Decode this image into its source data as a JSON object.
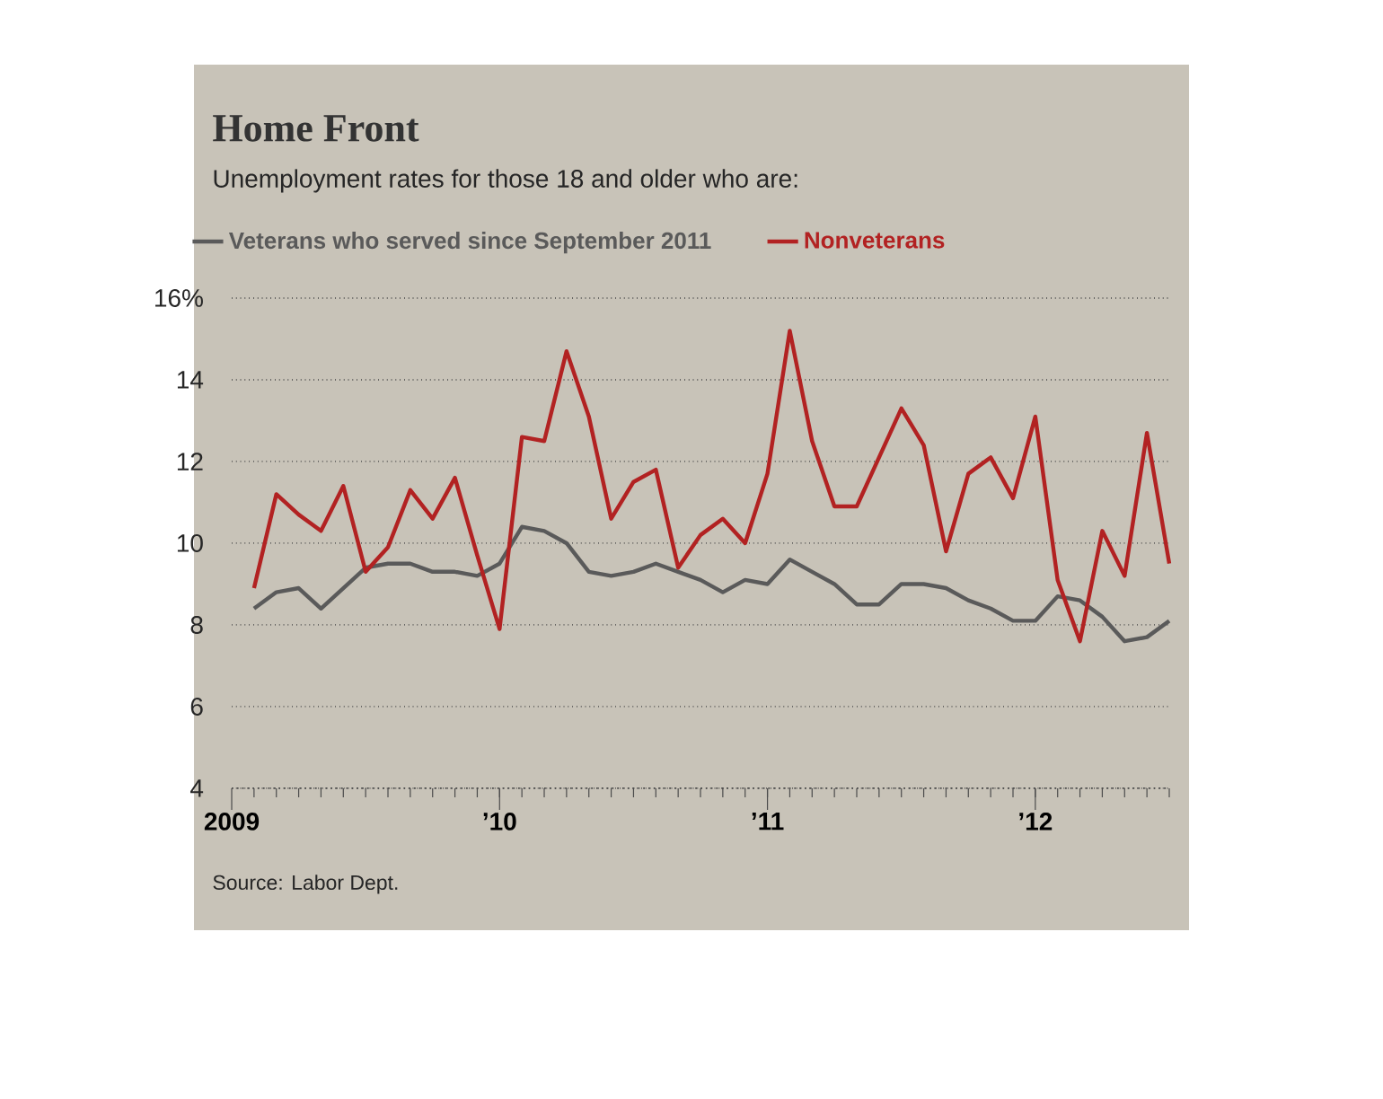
{
  "chart_data": {
    "type": "line",
    "title": "Home Front",
    "subtitle": "Unemployment rates for those 18 and older who are:",
    "annotations": [
      "Source: Labor Dept."
    ],
    "x": [
      "2009-02",
      "2009-03",
      "2009-04",
      "2009-05",
      "2009-06",
      "2009-07",
      "2009-08",
      "2009-09",
      "2009-10",
      "2009-11",
      "2009-12",
      "2010-01",
      "2010-02",
      "2010-03",
      "2010-04",
      "2010-05",
      "2010-06",
      "2010-07",
      "2010-08",
      "2010-09",
      "2010-10",
      "2010-11",
      "2010-12",
      "2011-01",
      "2011-02",
      "2011-03",
      "2011-04",
      "2011-05",
      "2011-06",
      "2011-07",
      "2011-08",
      "2011-09",
      "2011-10",
      "2011-11",
      "2011-12",
      "2012-01",
      "2012-02",
      "2012-03",
      "2012-04",
      "2012-05",
      "2012-06",
      "2012-07"
    ],
    "series": [
      {
        "name": "Veterans who served since September 2011",
        "color": "#5a5a5a",
        "values": [
          8.4,
          8.8,
          8.9,
          8.4,
          8.9,
          9.4,
          9.5,
          9.5,
          9.3,
          9.3,
          9.2,
          9.5,
          10.4,
          10.3,
          10.0,
          9.3,
          9.2,
          9.3,
          9.5,
          9.3,
          9.1,
          8.8,
          9.1,
          9.0,
          9.6,
          9.3,
          9.0,
          8.5,
          8.5,
          9.0,
          9.0,
          8.9,
          8.6,
          8.4,
          8.1,
          8.1,
          8.7,
          8.6,
          8.2,
          7.6,
          7.7,
          8.1
        ]
      },
      {
        "name": "Nonveterans",
        "color": "#b22222",
        "values": [
          8.9,
          11.2,
          10.7,
          10.3,
          11.4,
          9.3,
          9.9,
          11.3,
          10.6,
          11.6,
          9.7,
          7.9,
          12.6,
          12.5,
          14.7,
          13.1,
          10.6,
          11.5,
          11.8,
          9.4,
          10.2,
          10.6,
          10.0,
          11.7,
          15.2,
          12.5,
          10.9,
          10.9,
          12.1,
          13.3,
          12.4,
          9.8,
          11.7,
          12.1,
          11.1,
          13.1,
          9.1,
          7.6,
          10.3,
          9.2,
          12.7,
          9.5
        ]
      }
    ],
    "xlim": [
      "2009-01",
      "2012-07"
    ],
    "xticks": [
      {
        "value": "2009-01",
        "label": "2009"
      },
      {
        "value": "2010-01",
        "label": "’10"
      },
      {
        "value": "2011-01",
        "label": "’11"
      },
      {
        "value": "2012-01",
        "label": "’12"
      }
    ],
    "ylim": [
      4,
      16
    ],
    "yticks": [
      4,
      6,
      8,
      10,
      12,
      {
        "value": 16,
        "label": "16%"
      },
      14
    ],
    "grid": "y",
    "legend": "top left",
    "marker": "none",
    "line_style": "solid"
  }
}
